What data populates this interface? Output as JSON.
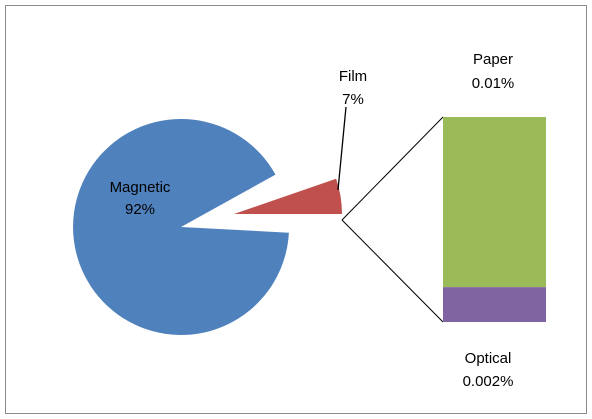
{
  "chart_data": {
    "type": "pie",
    "variant": "bar-of-pie",
    "title": "",
    "slices": [
      {
        "name": "Magnetic",
        "label": "Magnetic",
        "percent_label": "92%",
        "color": "#4f81bd"
      },
      {
        "name": "Film",
        "label": "Film",
        "percent_label": "7%",
        "color": "#c0504d"
      }
    ],
    "secondary_bar": {
      "segments": [
        {
          "name": "Paper",
          "label": "Paper",
          "percent_label": "0.01%",
          "value_share": 0.83,
          "color": "#9bbb59"
        },
        {
          "name": "Optical",
          "label": "Optical",
          "percent_label": "0.002%",
          "value_share": 0.17,
          "color": "#8064a2"
        }
      ]
    },
    "legend": "none",
    "grid": false
  }
}
